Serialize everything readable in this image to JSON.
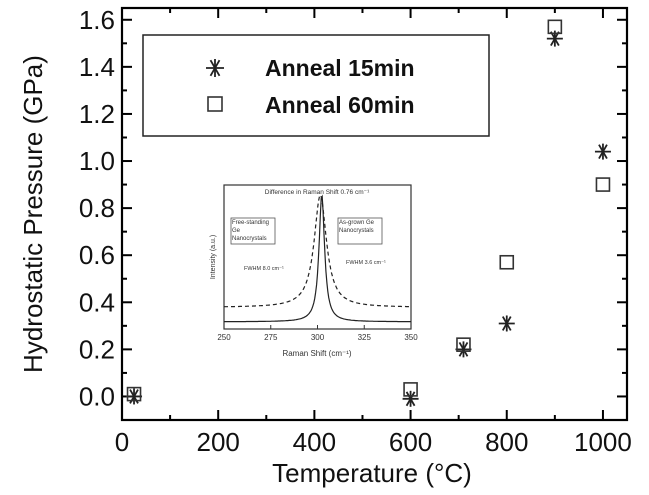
{
  "chart_data": [
    {
      "type": "scatter",
      "xlabel": "Temperature (°C)",
      "ylabel": "Hydrostatic Pressure (GPa)",
      "xlim": [
        0,
        1050
      ],
      "ylim": [
        -0.1,
        1.65
      ],
      "x_ticks": [
        0,
        200,
        400,
        600,
        800,
        1000
      ],
      "y_ticks": [
        0.0,
        0.2,
        0.4,
        0.6,
        0.8,
        1.0,
        1.2,
        1.4,
        1.6
      ],
      "x_tick_labels": [
        "0",
        "200",
        "400",
        "600",
        "800",
        "1000"
      ],
      "y_tick_labels": [
        "0.0",
        "0.2",
        "0.4",
        "0.6",
        "0.8",
        "1.0",
        "1.2",
        "1.4",
        "1.6"
      ],
      "legend_position": "top-left",
      "grid": false,
      "series": [
        {
          "name": "Anneal 15min",
          "marker": "asterisk",
          "points": [
            {
              "x": 25,
              "y": 0.0
            },
            {
              "x": 600,
              "y": -0.01
            },
            {
              "x": 710,
              "y": 0.2
            },
            {
              "x": 800,
              "y": 0.31
            },
            {
              "x": 900,
              "y": 1.52
            },
            {
              "x": 1000,
              "y": 1.04
            }
          ]
        },
        {
          "name": "Anneal 60min",
          "marker": "square",
          "points": [
            {
              "x": 25,
              "y": 0.01
            },
            {
              "x": 600,
              "y": 0.03
            },
            {
              "x": 710,
              "y": 0.22
            },
            {
              "x": 800,
              "y": 0.57
            },
            {
              "x": 900,
              "y": 1.57
            },
            {
              "x": 1000,
              "y": 0.9
            }
          ]
        }
      ]
    },
    {
      "type": "line",
      "title": "Difference in Raman Shift 0.76 cm⁻¹",
      "xlabel": "Raman Shift (cm⁻¹)",
      "ylabel": "Intensity (a.u.)",
      "xlim": [
        250,
        350
      ],
      "x_ticks": [
        250,
        275,
        300,
        325,
        350
      ],
      "x_tick_labels": [
        "250",
        "275",
        "300",
        "325",
        "350"
      ],
      "annotations": [
        {
          "text": "Free-standing Ge Nanocrystals",
          "side": "left"
        },
        {
          "text": "FWHM 8.0 cm⁻¹",
          "side": "left"
        },
        {
          "text": "As-grown Ge Nanocrystals",
          "side": "right"
        },
        {
          "text": "FWHM 3.6 cm⁻¹",
          "side": "right"
        }
      ],
      "series": [
        {
          "style": "dashed",
          "peak_x": 301.5,
          "fwhm": 8.0,
          "baseline": 0.15,
          "peak": 0.93
        },
        {
          "style": "solid",
          "peak_x": 302.3,
          "fwhm": 3.6,
          "baseline": 0.05,
          "peak": 0.93
        }
      ]
    }
  ]
}
